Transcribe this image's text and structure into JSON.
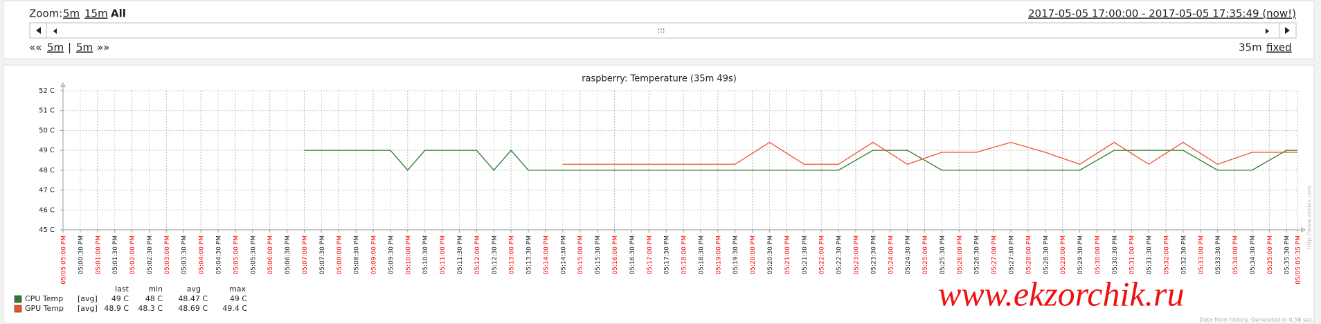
{
  "toolbar": {
    "zoom_label": "Zoom:",
    "zoom_options": [
      "5m",
      "15m",
      "All"
    ],
    "period": "2017-05-05 17:00:00 - 2017-05-05 17:35:49 (now!)",
    "scroll_handle": ":::",
    "nav_back": "««",
    "nav_back_step": "5m",
    "nav_separator": "|",
    "nav_forward_step": "5m",
    "nav_forward": "»»",
    "period_length": "35m",
    "period_mode": "fixed"
  },
  "chart_data": {
    "type": "line",
    "title": "raspberry: Temperature (35m 49s)",
    "xlim": [
      "17:00:00",
      "17:35:49"
    ],
    "xticks": [
      {
        "value": "17:00:00",
        "label": "05/05 05:00 PM"
      },
      {
        "value": "17:00:30",
        "label": "05:00:30 PM"
      },
      {
        "value": "17:01:00",
        "label": "05:01:00 PM"
      },
      {
        "value": "17:01:30",
        "label": "05:01:30 PM"
      },
      {
        "value": "17:02:00",
        "label": "05:02:00 PM"
      },
      {
        "value": "17:02:30",
        "label": "05:02:30 PM"
      },
      {
        "value": "17:03:00",
        "label": "05:03:00 PM"
      },
      {
        "value": "17:03:30",
        "label": "05:03:30 PM"
      },
      {
        "value": "17:04:00",
        "label": "05:04:00 PM"
      },
      {
        "value": "17:04:30",
        "label": "05:04:30 PM"
      },
      {
        "value": "17:05:00",
        "label": "05:05:00 PM"
      },
      {
        "value": "17:05:30",
        "label": "05:05:30 PM"
      },
      {
        "value": "17:06:00",
        "label": "05:06:00 PM"
      },
      {
        "value": "17:06:30",
        "label": "05:06:30 PM"
      },
      {
        "value": "17:07:00",
        "label": "05:07:00 PM"
      },
      {
        "value": "17:07:30",
        "label": "05:07:30 PM"
      },
      {
        "value": "17:08:00",
        "label": "05:08:00 PM"
      },
      {
        "value": "17:08:30",
        "label": "05:08:30 PM"
      },
      {
        "value": "17:09:00",
        "label": "05:09:00 PM"
      },
      {
        "value": "17:09:30",
        "label": "05:09:30 PM"
      },
      {
        "value": "17:10:00",
        "label": "05:10:00 PM"
      },
      {
        "value": "17:10:30",
        "label": "05:10:30 PM"
      },
      {
        "value": "17:11:00",
        "label": "05:11:00 PM"
      },
      {
        "value": "17:11:30",
        "label": "05:11:30 PM"
      },
      {
        "value": "17:12:00",
        "label": "05:12:00 PM"
      },
      {
        "value": "17:12:30",
        "label": "05:12:30 PM"
      },
      {
        "value": "17:13:00",
        "label": "05:13:00 PM"
      },
      {
        "value": "17:13:30",
        "label": "05:13:30 PM"
      },
      {
        "value": "17:14:00",
        "label": "05:14:00 PM"
      },
      {
        "value": "17:14:30",
        "label": "05:14:30 PM"
      },
      {
        "value": "17:15:00",
        "label": "05:15:00 PM"
      },
      {
        "value": "17:15:30",
        "label": "05:15:30 PM"
      },
      {
        "value": "17:16:00",
        "label": "05:16:00 PM"
      },
      {
        "value": "17:16:30",
        "label": "05:16:30 PM"
      },
      {
        "value": "17:17:00",
        "label": "05:17:00 PM"
      },
      {
        "value": "17:17:30",
        "label": "05:17:30 PM"
      },
      {
        "value": "17:18:00",
        "label": "05:18:00 PM"
      },
      {
        "value": "17:18:30",
        "label": "05:18:30 PM"
      },
      {
        "value": "17:19:00",
        "label": "05:19:00 PM"
      },
      {
        "value": "17:19:30",
        "label": "05:19:30 PM"
      },
      {
        "value": "17:20:00",
        "label": "05:20:00 PM"
      },
      {
        "value": "17:20:30",
        "label": "05:20:30 PM"
      },
      {
        "value": "17:21:00",
        "label": "05:21:00 PM"
      },
      {
        "value": "17:21:30",
        "label": "05:21:30 PM"
      },
      {
        "value": "17:22:00",
        "label": "05:22:00 PM"
      },
      {
        "value": "17:22:30",
        "label": "05:22:30 PM"
      },
      {
        "value": "17:23:00",
        "label": "05:23:00 PM"
      },
      {
        "value": "17:23:30",
        "label": "05:23:30 PM"
      },
      {
        "value": "17:24:00",
        "label": "05:24:00 PM"
      },
      {
        "value": "17:24:30",
        "label": "05:24:30 PM"
      },
      {
        "value": "17:25:00",
        "label": "05:25:00 PM"
      },
      {
        "value": "17:25:30",
        "label": "05:25:30 PM"
      },
      {
        "value": "17:26:00",
        "label": "05:26:00 PM"
      },
      {
        "value": "17:26:30",
        "label": "05:26:30 PM"
      },
      {
        "value": "17:27:00",
        "label": "05:27:00 PM"
      },
      {
        "value": "17:27:30",
        "label": "05:27:30 PM"
      },
      {
        "value": "17:28:00",
        "label": "05:28:00 PM"
      },
      {
        "value": "17:28:30",
        "label": "05:28:30 PM"
      },
      {
        "value": "17:29:00",
        "label": "05:29:00 PM"
      },
      {
        "value": "17:29:30",
        "label": "05:29:30 PM"
      },
      {
        "value": "17:30:00",
        "label": "05:30:00 PM"
      },
      {
        "value": "17:30:30",
        "label": "05:30:30 PM"
      },
      {
        "value": "17:31:00",
        "label": "05:31:00 PM"
      },
      {
        "value": "17:31:30",
        "label": "05:31:30 PM"
      },
      {
        "value": "17:32:00",
        "label": "05:32:00 PM"
      },
      {
        "value": "17:32:30",
        "label": "05:32:30 PM"
      },
      {
        "value": "17:33:00",
        "label": "05:33:00 PM"
      },
      {
        "value": "17:33:30",
        "label": "05:33:30 PM"
      },
      {
        "value": "17:34:00",
        "label": "05:34:00 PM"
      },
      {
        "value": "17:34:30",
        "label": "05:34:30 PM"
      },
      {
        "value": "17:35:00",
        "label": "05:35:00 PM"
      },
      {
        "value": "17:35:30",
        "label": "05:35:30 PM"
      },
      {
        "value": "17:35:49",
        "label": "05/05 05:35 PM"
      }
    ],
    "ylim": [
      45,
      52
    ],
    "yticks": [
      {
        "value": 45,
        "label": "45 C"
      },
      {
        "value": 46,
        "label": "46 C"
      },
      {
        "value": 47,
        "label": "47 C"
      },
      {
        "value": 48,
        "label": "48 C"
      },
      {
        "value": 49,
        "label": "49 C"
      },
      {
        "value": 50,
        "label": "50 C"
      },
      {
        "value": 51,
        "label": "51 C"
      },
      {
        "value": 52,
        "label": "52 C"
      }
    ],
    "grid": true,
    "tick_color": "#222222",
    "major_tick_color": "#ff0000",
    "series": [
      {
        "name": "CPU Temp",
        "color": "#2e7d2e",
        "x": [
          "17:07:00",
          "17:09:30",
          "17:10:00",
          "17:10:30",
          "17:12:00",
          "17:12:30",
          "17:13:00",
          "17:13:30",
          "17:22:30",
          "17:23:30",
          "17:24:30",
          "17:25:30",
          "17:29:30",
          "17:30:30",
          "17:32:30",
          "17:33:30",
          "17:34:30",
          "17:35:30",
          "17:35:49"
        ],
        "values": [
          49,
          49,
          48,
          49,
          49,
          48,
          49,
          48,
          48,
          49,
          49,
          48,
          48,
          49,
          49,
          48,
          48,
          49,
          49
        ]
      },
      {
        "name": "GPU Temp",
        "color": "#f0502e",
        "x": [
          "17:14:30",
          "17:19:30",
          "17:20:30",
          "17:21:30",
          "17:22:30",
          "17:23:30",
          "17:24:30",
          "17:25:30",
          "17:26:30",
          "17:27:30",
          "17:28:30",
          "17:29:30",
          "17:30:30",
          "17:31:30",
          "17:32:30",
          "17:33:30",
          "17:34:30",
          "17:35:49"
        ],
        "values": [
          48.3,
          48.3,
          49.4,
          48.3,
          48.3,
          49.4,
          48.3,
          48.9,
          48.9,
          49.4,
          48.9,
          48.3,
          49.4,
          48.3,
          49.4,
          48.3,
          48.9,
          48.9
        ]
      }
    ],
    "legend_table": {
      "header": [
        "last",
        "min",
        "avg",
        "max"
      ],
      "rows": [
        [
          "[avg]",
          "49 C",
          "48 C",
          "48.47 C",
          "49 C"
        ],
        [
          "[avg]",
          "48.9 C",
          "48.3 C",
          "48.69 C",
          "49.4 C"
        ]
      ]
    }
  },
  "watermark": "www.ekzorchik.ru",
  "footer_note": "Data from history. Generated in 0.58 sec.",
  "vendor_url": "http://www.zabbix.com"
}
